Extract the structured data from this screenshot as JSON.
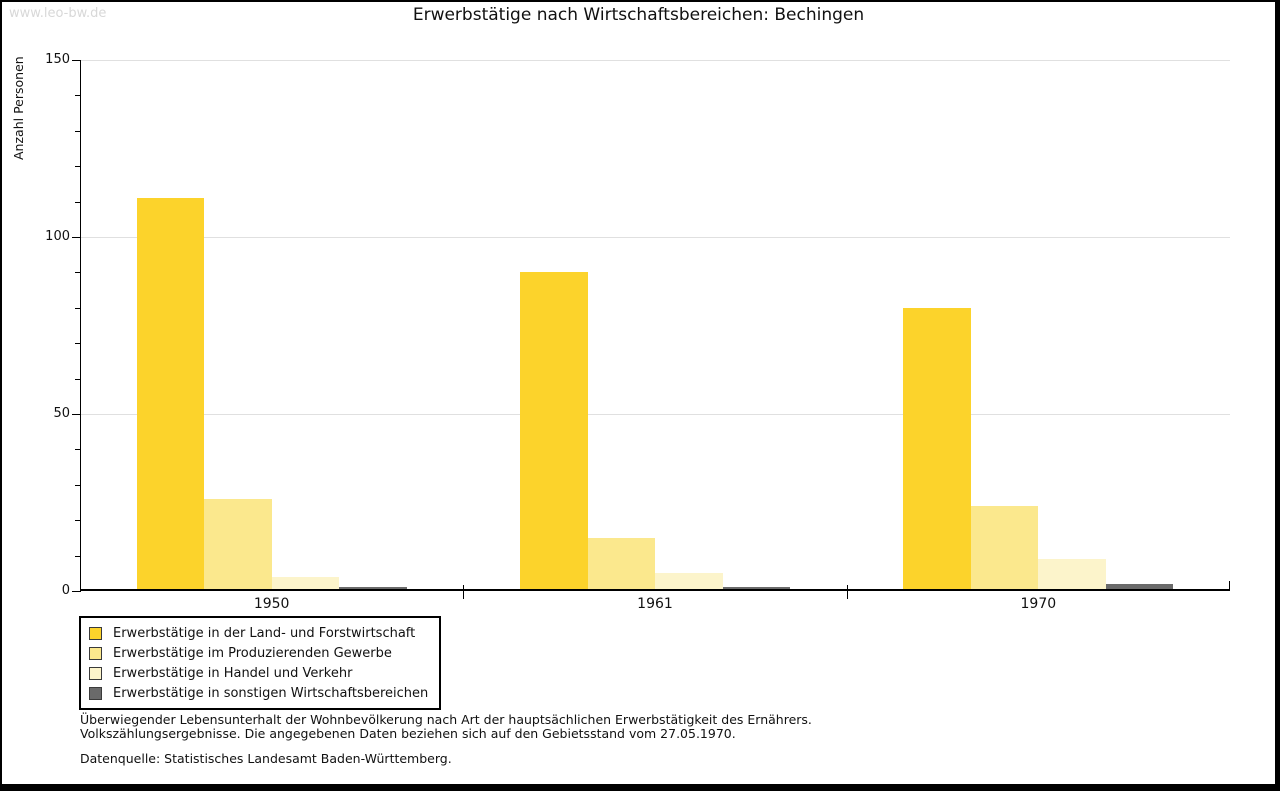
{
  "watermark": "www.leo-bw.de",
  "chart_data": {
    "type": "bar",
    "title": "Erwerbstätige nach Wirtschaftsbereichen: Bechingen",
    "ylabel": "Anzahl Personen",
    "categories": [
      "1950",
      "1961",
      "1970"
    ],
    "series": [
      {
        "name": "Erwerbstätige in der Land- und Forstwirtschaft",
        "color": "#fcd32b",
        "values": [
          111,
          90,
          80
        ]
      },
      {
        "name": "Erwerbstätige im Produzierenden Gewerbe",
        "color": "#fbe88d",
        "values": [
          26,
          15,
          24
        ]
      },
      {
        "name": "Erwerbstätige in Handel und Verkehr",
        "color": "#fcf4cb",
        "values": [
          4,
          5,
          9
        ]
      },
      {
        "name": "Erwerbstätige in sonstigen Wirtschaftsbereichen",
        "color": "#6a6a6a",
        "values": [
          1,
          1,
          2
        ]
      }
    ],
    "ylim": [
      0,
      150
    ],
    "yticks": [
      0,
      50,
      100,
      150
    ],
    "minor_tick_step": 10,
    "grid": "horizontal",
    "legend_position": "bottom-left",
    "colors": {
      "axis": "#000000",
      "gridline": "#e0e0e0",
      "watermark": "#d8d8d8"
    }
  },
  "footer": {
    "note_line1": "Überwiegender Lebensunterhalt der Wohnbevölkerung nach Art der hauptsächlichen Erwerbstätigkeit des Ernährers.",
    "note_line2": "Volkszählungsergebnisse. Die angegebenen Daten beziehen sich auf den Gebietsstand vom 27.05.1970.",
    "source": "Datenquelle: Statistisches Landesamt Baden-Württemberg."
  }
}
